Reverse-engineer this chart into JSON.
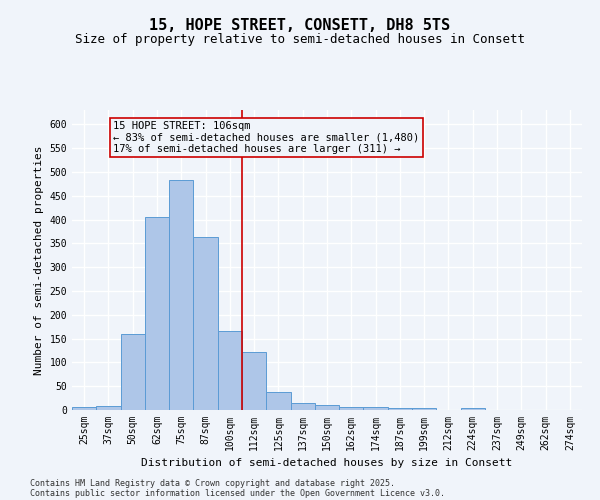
{
  "title1": "15, HOPE STREET, CONSETT, DH8 5TS",
  "title2": "Size of property relative to semi-detached houses in Consett",
  "xlabel": "Distribution of semi-detached houses by size in Consett",
  "ylabel": "Number of semi-detached properties",
  "categories": [
    "25sqm",
    "37sqm",
    "50sqm",
    "62sqm",
    "75sqm",
    "87sqm",
    "100sqm",
    "112sqm",
    "125sqm",
    "137sqm",
    "150sqm",
    "162sqm",
    "174sqm",
    "187sqm",
    "199sqm",
    "212sqm",
    "224sqm",
    "237sqm",
    "249sqm",
    "262sqm",
    "274sqm"
  ],
  "values": [
    6,
    8,
    160,
    405,
    483,
    363,
    165,
    122,
    38,
    15,
    11,
    7,
    7,
    4,
    4,
    1,
    5,
    0,
    0,
    0,
    1
  ],
  "bar_color": "#aec6e8",
  "bar_edge_color": "#5b9bd5",
  "property_label": "15 HOPE STREET: 106sqm",
  "pct_smaller": 83,
  "count_smaller": 1480,
  "pct_larger": 17,
  "count_larger": 311,
  "vline_color": "#cc0000",
  "ylim": [
    0,
    630
  ],
  "yticks": [
    0,
    50,
    100,
    150,
    200,
    250,
    300,
    350,
    400,
    450,
    500,
    550,
    600
  ],
  "footnote1": "Contains HM Land Registry data © Crown copyright and database right 2025.",
  "footnote2": "Contains public sector information licensed under the Open Government Licence v3.0.",
  "bg_color": "#f0f4fa",
  "grid_color": "#ffffff",
  "title1_fontsize": 11,
  "title2_fontsize": 9,
  "axis_label_fontsize": 8,
  "tick_fontsize": 7,
  "annot_fontsize": 7.5,
  "footnote_fontsize": 6,
  "vline_x": 6.5
}
